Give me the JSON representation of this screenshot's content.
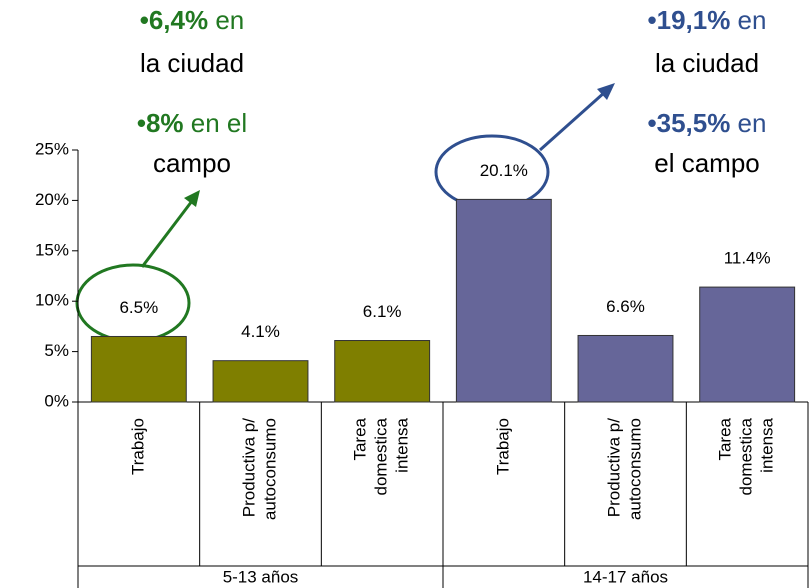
{
  "chart_data": {
    "type": "bar",
    "groups": [
      {
        "label": "5-13 años",
        "color": "#7f7f00",
        "categories": [
          [
            "Trabajo"
          ],
          [
            "Productiva p/",
            "autoconsumo"
          ],
          [
            "Tarea",
            "domestica",
            "intensa"
          ]
        ],
        "values": [
          6.5,
          4.1,
          6.1
        ],
        "value_labels": [
          "6.5%",
          "4.1%",
          "6.1%"
        ]
      },
      {
        "label": "14-17 años",
        "color": "#666699",
        "categories": [
          [
            "Trabajo"
          ],
          [
            "Productiva p/",
            "autoconsumo"
          ],
          [
            "Tarea",
            "domestica",
            "intensa"
          ]
        ],
        "values": [
          20.1,
          6.6,
          11.4
        ],
        "value_labels": [
          "20.1%",
          "6.6%",
          "11.4%"
        ]
      }
    ],
    "ylim": [
      0,
      25
    ],
    "yticks": [
      {
        "value": 0,
        "label": "0%"
      },
      {
        "value": 5,
        "label": "5%"
      },
      {
        "value": 10,
        "label": "10%"
      },
      {
        "value": 15,
        "label": "15%"
      },
      {
        "value": 20,
        "label": "20%"
      },
      {
        "value": 25,
        "label": "25%"
      }
    ],
    "annotations": [
      {
        "color": "#217821",
        "items": [
          {
            "strong": "•6,4%",
            "lines": [
              " en",
              "la ciudad"
            ]
          },
          {
            "strong": "•8%",
            "lines": [
              " en el",
              "campo"
            ]
          }
        ]
      },
      {
        "color": "#2f4f8f",
        "items": [
          {
            "strong": "•19,1%",
            "lines": [
              " en",
              "la ciudad"
            ]
          },
          {
            "strong": "•35,5%",
            "lines": [
              " en",
              "el campo"
            ]
          }
        ]
      }
    ]
  }
}
